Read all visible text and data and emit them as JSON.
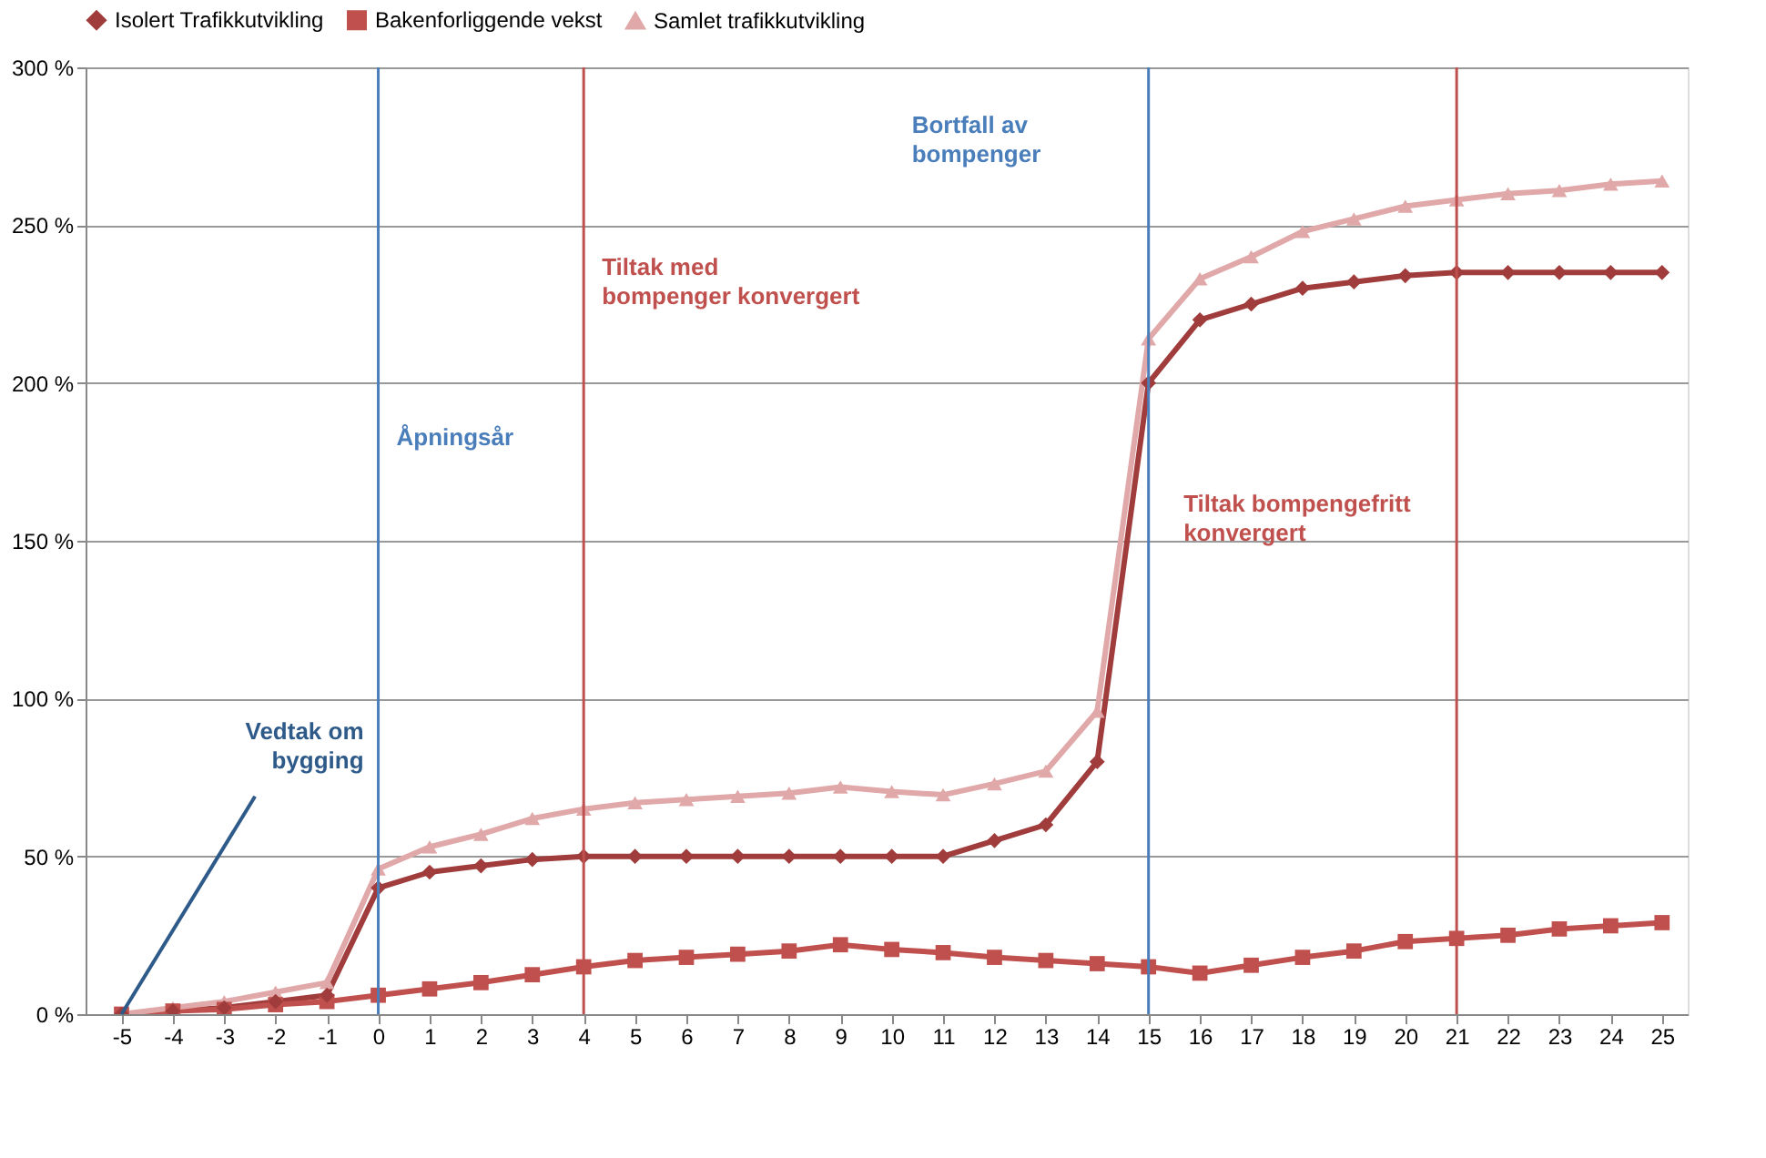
{
  "chart_data": {
    "type": "line",
    "x": [
      -5,
      -4,
      -3,
      -2,
      -1,
      0,
      1,
      2,
      3,
      4,
      5,
      6,
      7,
      8,
      9,
      10,
      11,
      12,
      13,
      14,
      15,
      16,
      17,
      18,
      19,
      20,
      21,
      22,
      23,
      24,
      25
    ],
    "series": [
      {
        "name": "Isolert Trafikkutvikling",
        "color": "#a03c3c",
        "marker": "diamond",
        "values": [
          0,
          1,
          2,
          4,
          6,
          40,
          45,
          47,
          49,
          50,
          50,
          50,
          50,
          50,
          50,
          50,
          50,
          55,
          60,
          80,
          200,
          220,
          225,
          230,
          232,
          234,
          235,
          235,
          235,
          235,
          235
        ]
      },
      {
        "name": "Bakenforliggende vekst",
        "color": "#c0504d",
        "marker": "square",
        "values": [
          0,
          1,
          1.5,
          3,
          4,
          6,
          8,
          10,
          12.5,
          15,
          17,
          18,
          19,
          20,
          22,
          20.5,
          19.5,
          18,
          17,
          16,
          15,
          13,
          15.5,
          18,
          20,
          23,
          24,
          25,
          27,
          28,
          29
        ]
      },
      {
        "name": "Samlet trafikkutvikling",
        "color": "#e0a8a8",
        "marker": "triangle",
        "values": [
          0,
          2,
          4,
          7,
          10,
          46,
          53,
          57,
          62,
          65,
          67,
          68,
          69,
          70,
          72,
          70.5,
          69.5,
          73,
          77,
          96,
          214,
          233,
          240,
          248,
          252,
          256,
          258,
          260,
          261,
          263,
          264
        ]
      }
    ],
    "xlim": [
      -5.7,
      25.5
    ],
    "xticks": [
      {
        "value": -5,
        "label": "-5"
      },
      {
        "value": -4,
        "label": "-4"
      },
      {
        "value": -3,
        "label": "-3"
      },
      {
        "value": -2,
        "label": "-2"
      },
      {
        "value": -1,
        "label": "-1"
      },
      0,
      1,
      2,
      3,
      4,
      5,
      6,
      7,
      8,
      9,
      10,
      11,
      12,
      13,
      14,
      15,
      16,
      17,
      18,
      19,
      20,
      21,
      22,
      23,
      24,
      25
    ],
    "ylim": [
      0,
      300
    ],
    "yticks": [
      {
        "value": 0,
        "label": "0 %"
      },
      {
        "value": 50,
        "label": "50 %"
      },
      {
        "value": 100,
        "label": "100 %"
      },
      {
        "value": 150,
        "label": "150 %"
      },
      {
        "value": 200,
        "label": "200 %"
      },
      {
        "value": 250,
        "label": "250 %"
      },
      {
        "value": 300,
        "label": "300 %"
      }
    ],
    "grid": "y",
    "legend": "top",
    "line_style": "solid",
    "ref_lines": [
      {
        "axis": "x",
        "value": 0,
        "label": "Åpningsår",
        "color": "#4a7ebb"
      },
      {
        "axis": "x",
        "value": 4,
        "label": "Tiltak med bompenger konvergert",
        "color": "#c0504d"
      },
      {
        "axis": "x",
        "value": 15,
        "label": "Bortfall av bompenger",
        "color": "#4a7ebb"
      },
      {
        "axis": "x",
        "value": 21,
        "label": "Tiltak bompengefritt konvergert",
        "color": "#c0504d"
      }
    ],
    "annotations": [
      {
        "text": "Vedtak om bygging",
        "x": -5,
        "y": 0
      }
    ]
  }
}
